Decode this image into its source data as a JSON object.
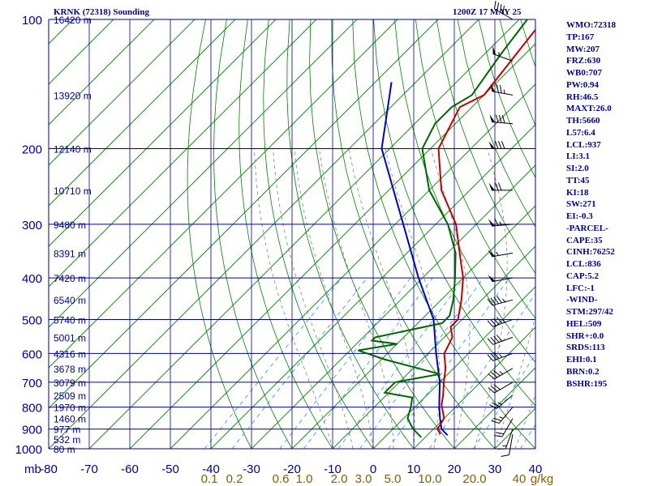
{
  "header": {
    "title": "KRNK (72318) Sounding",
    "datetime": "1200Z 17 MAY 25"
  },
  "indices": [
    "WMO:72318",
    "TP:167",
    "MW:207",
    "FRZ:630",
    "WB0:707",
    "PW:0.94",
    "RH:46.5",
    "MAXT:26.0",
    "TH:5660",
    "L57:6.4",
    "LCL:937",
    "LI:3.1",
    "SI:2.0",
    "TT:45",
    "KI:18",
    "SW:271",
    "EI:-0.3",
    "-PARCEL-",
    "CAPE:35",
    "CINH:76252",
    "LCL:836",
    "CAP:5.2",
    "LFC:-1",
    "-WIND-",
    "STM:297/42",
    "HEL:509",
    "SHR+:0.0",
    "SRDS:113",
    "EHI:0.1",
    "BRN:0.2",
    "BSHR:195"
  ],
  "colors": {
    "frame": "#00008b",
    "isotherm": "#00a000",
    "dry_adiabat": "#008000",
    "moist_adiabat": "#808080",
    "mixing_ratio": "#1e90ff",
    "temperature": "#c00000",
    "dewpoint": "#006400",
    "parcel": "#0000c0",
    "barbs": "#000000",
    "mixing_label": "#806000"
  },
  "chart_data": {
    "type": "skew-t",
    "title": "KRNK (72318) Sounding",
    "pressure_axis": {
      "unit_label": "mb",
      "ticks": [
        100,
        200,
        300,
        400,
        500,
        600,
        700,
        800,
        900,
        1000
      ],
      "range": [
        100,
        1000
      ],
      "scale": "log"
    },
    "temperature_axis": {
      "ticks": [
        -80,
        -70,
        -60,
        -50,
        -40,
        -30,
        -20,
        -10,
        0,
        10,
        20,
        30,
        40
      ],
      "range": [
        -80,
        40
      ]
    },
    "height_labels": [
      {
        "p": 100,
        "label": "16420 m"
      },
      {
        "p": 150,
        "label": "13920 m"
      },
      {
        "p": 200,
        "label": "12140 m"
      },
      {
        "p": 250,
        "label": "10710 m"
      },
      {
        "p": 300,
        "label": "9480 m"
      },
      {
        "p": 350,
        "label": "8391 m"
      },
      {
        "p": 400,
        "label": "7420 m"
      },
      {
        "p": 450,
        "label": "6540 m"
      },
      {
        "p": 500,
        "label": "5740 m"
      },
      {
        "p": 550,
        "label": "5001 m"
      },
      {
        "p": 600,
        "label": "4316 m"
      },
      {
        "p": 650,
        "label": "3678 m"
      },
      {
        "p": 700,
        "label": "3079 m"
      },
      {
        "p": 750,
        "label": "2509 m"
      },
      {
        "p": 800,
        "label": "1970 m"
      },
      {
        "p": 850,
        "label": "1460 m"
      },
      {
        "p": 900,
        "label": "977 m"
      },
      {
        "p": 950,
        "label": "532 m"
      },
      {
        "p": 1000,
        "label": "80 m"
      }
    ],
    "mixing_ratio_labels": [
      "0.1",
      "0.2",
      "0.6",
      "1.0",
      "2.0",
      "3.0",
      "5.0",
      "10.0",
      "20.0",
      "40",
      "g/kg"
    ],
    "temperature": [
      [
        100,
        -64
      ],
      [
        150,
        -60
      ],
      [
        160,
        -63
      ],
      [
        175,
        -61
      ],
      [
        200,
        -58
      ],
      [
        250,
        -47
      ],
      [
        300,
        -35
      ],
      [
        350,
        -27
      ],
      [
        400,
        -20
      ],
      [
        450,
        -15
      ],
      [
        500,
        -11
      ],
      [
        520,
        -11
      ],
      [
        550,
        -8
      ],
      [
        600,
        -6
      ],
      [
        650,
        -2
      ],
      [
        700,
        1
      ],
      [
        750,
        4
      ],
      [
        790,
        6
      ],
      [
        850,
        10
      ],
      [
        900,
        11
      ],
      [
        925,
        13
      ]
    ],
    "dewpoint": [
      [
        100,
        -68
      ],
      [
        120,
        -66
      ],
      [
        150,
        -63
      ],
      [
        160,
        -65
      ],
      [
        175,
        -65
      ],
      [
        200,
        -62
      ],
      [
        250,
        -50
      ],
      [
        300,
        -37
      ],
      [
        350,
        -28
      ],
      [
        400,
        -22
      ],
      [
        450,
        -17
      ],
      [
        490,
        -14
      ],
      [
        510,
        -14
      ],
      [
        550,
        -27
      ],
      [
        560,
        -27
      ],
      [
        570,
        -20
      ],
      [
        590,
        -28
      ],
      [
        620,
        -19
      ],
      [
        670,
        -2
      ],
      [
        700,
        -11
      ],
      [
        740,
        -11
      ],
      [
        760,
        -3
      ],
      [
        800,
        -1
      ],
      [
        850,
        1
      ],
      [
        900,
        5
      ],
      [
        940,
        9
      ]
    ],
    "parcel": [
      [
        140,
        -86
      ],
      [
        200,
        -72
      ],
      [
        300,
        -48
      ],
      [
        400,
        -31
      ],
      [
        500,
        -17
      ],
      [
        600,
        -8
      ],
      [
        700,
        0
      ],
      [
        800,
        6
      ],
      [
        850,
        9
      ],
      [
        900,
        12
      ],
      [
        930,
        15
      ]
    ],
    "wind_barbs": [
      {
        "p": 100,
        "dir": 300,
        "spd": 40
      },
      {
        "p": 125,
        "dir": 290,
        "spd": 55
      },
      {
        "p": 150,
        "dir": 280,
        "spd": 75
      },
      {
        "p": 175,
        "dir": 275,
        "spd": 80
      },
      {
        "p": 200,
        "dir": 270,
        "spd": 80
      },
      {
        "p": 250,
        "dir": 270,
        "spd": 70
      },
      {
        "p": 300,
        "dir": 265,
        "spd": 65
      },
      {
        "p": 350,
        "dir": 260,
        "spd": 55
      },
      {
        "p": 400,
        "dir": 260,
        "spd": 50
      },
      {
        "p": 450,
        "dir": 255,
        "spd": 45
      },
      {
        "p": 500,
        "dir": 250,
        "spd": 45
      },
      {
        "p": 550,
        "dir": 250,
        "spd": 40
      },
      {
        "p": 600,
        "dir": 250,
        "spd": 35
      },
      {
        "p": 650,
        "dir": 240,
        "spd": 35
      },
      {
        "p": 700,
        "dir": 240,
        "spd": 30
      },
      {
        "p": 750,
        "dir": 230,
        "spd": 25
      },
      {
        "p": 800,
        "dir": 220,
        "spd": 25
      },
      {
        "p": 850,
        "dir": 210,
        "spd": 20
      },
      {
        "p": 900,
        "dir": 200,
        "spd": 15
      },
      {
        "p": 925,
        "dir": 190,
        "spd": 10
      }
    ]
  }
}
